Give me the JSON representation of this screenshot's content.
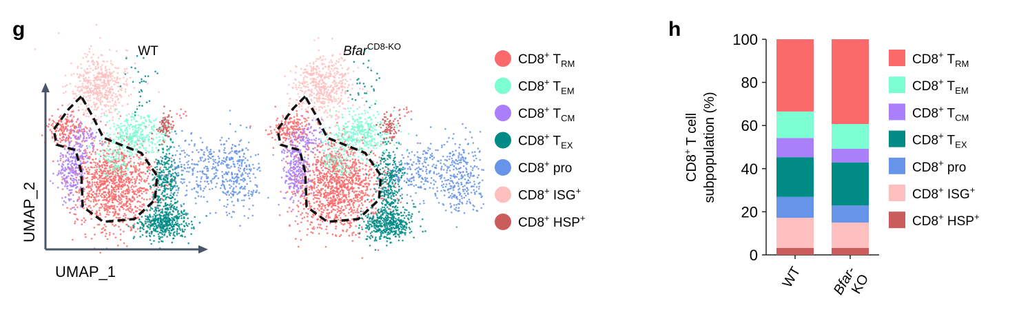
{
  "panel_labels": {
    "g": "g",
    "h": "h"
  },
  "colors": {
    "TRM": "#fa6a6a",
    "TEM": "#7dfdd2",
    "TCM": "#a97ffa",
    "TEX": "#008b87",
    "pro": "#6694e8",
    "ISG": "#ffbfbf",
    "HSP": "#cb5c5c",
    "axis": "#4a5568"
  },
  "legend": [
    {
      "key": "TRM",
      "base": "CD8",
      "sup": "+",
      "text": " T",
      "sub": "RM"
    },
    {
      "key": "TEM",
      "base": "CD8",
      "sup": "+",
      "text": " T",
      "sub": "EM"
    },
    {
      "key": "TCM",
      "base": "CD8",
      "sup": "+",
      "text": " T",
      "sub": "CM"
    },
    {
      "key": "TEX",
      "base": "CD8",
      "sup": "+",
      "text": " T",
      "sub": "EX"
    },
    {
      "key": "pro",
      "base": "CD8",
      "sup": "+",
      "text": " pro",
      "sub": ""
    },
    {
      "key": "ISG",
      "base": "CD8",
      "sup": "+",
      "text": " ISG",
      "sub": "",
      "sup2": "+"
    },
    {
      "key": "HSP",
      "base": "CD8",
      "sup": "+",
      "text": " HSP",
      "sub": "",
      "sup2": "+"
    }
  ],
  "chart_data": [
    {
      "type": "scatter",
      "panels": [
        {
          "title": "WT"
        },
        {
          "title_italic": "Bfar",
          "title_sup": "CD8-KO"
        }
      ],
      "xlabel": "UMAP_1",
      "ylabel": "UMAP_2"
    },
    {
      "type": "bar",
      "stacked": true,
      "categories": [
        "WT",
        "Bfar-KO"
      ],
      "category_lines": [
        [
          "WT"
        ],
        [
          "Bfar-",
          "KO"
        ]
      ],
      "ylabel_lines": [
        "CD8+ T cell",
        "subpopulation (%)"
      ],
      "ylim": [
        0,
        100
      ],
      "yticks": [
        0,
        20,
        40,
        60,
        80,
        100
      ],
      "series": [
        {
          "key": "HSP",
          "values": [
            3.2,
            3.2
          ]
        },
        {
          "key": "ISG",
          "values": [
            14.0,
            11.8
          ]
        },
        {
          "key": "pro",
          "values": [
            9.7,
            7.9
          ]
        },
        {
          "key": "TEX",
          "values": [
            18.4,
            20.0
          ]
        },
        {
          "key": "TCM",
          "values": [
            8.9,
            6.3
          ]
        },
        {
          "key": "TEM",
          "values": [
            12.3,
            11.5
          ]
        },
        {
          "key": "TRM",
          "values": [
            33.5,
            39.3
          ]
        }
      ]
    }
  ]
}
